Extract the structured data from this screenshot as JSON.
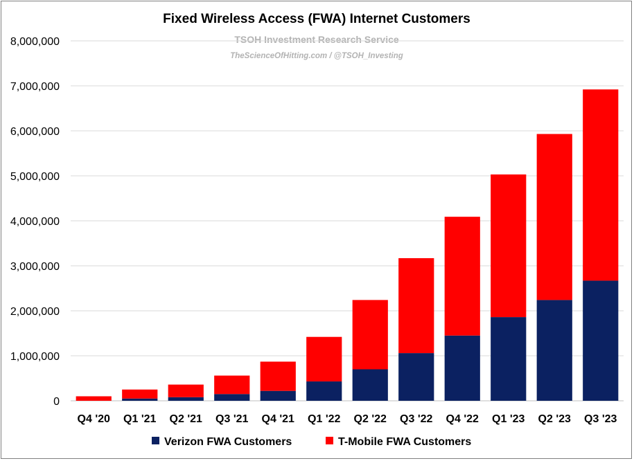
{
  "chart_data": {
    "type": "bar",
    "stacked": true,
    "title": "Fixed Wireless Access (FWA) Internet Customers",
    "watermark": {
      "line1": "TSOH Investment Research Service",
      "line2": "TheScienceOfHitting.com / @TSOH_Investing"
    },
    "categories": [
      "Q4 '20",
      "Q1 '21",
      "Q2 '21",
      "Q3 '21",
      "Q4 '21",
      "Q1 '22",
      "Q2 '22",
      "Q3 '22",
      "Q4 '22",
      "Q1 '23",
      "Q2 '23",
      "Q3 '23"
    ],
    "series": [
      {
        "name": "Verizon FWA Customers",
        "color": "#0b2161",
        "values": [
          0,
          50000,
          80000,
          150000,
          220000,
          430000,
          700000,
          1060000,
          1450000,
          1860000,
          2240000,
          2670000
        ]
      },
      {
        "name": "T-Mobile FWA Customers",
        "color": "#ff0000",
        "values": [
          100000,
          200000,
          280000,
          410000,
          650000,
          990000,
          1540000,
          2110000,
          2640000,
          3170000,
          3690000,
          4250000
        ]
      }
    ],
    "ylim": [
      0,
      8000000
    ],
    "yticks": [
      "0",
      "1,000,000",
      "2,000,000",
      "3,000,000",
      "4,000,000",
      "5,000,000",
      "6,000,000",
      "7,000,000",
      "8,000,000"
    ],
    "ytick_values": [
      0,
      1000000,
      2000000,
      3000000,
      4000000,
      5000000,
      6000000,
      7000000,
      8000000
    ],
    "grid": true,
    "legend_position": "bottom",
    "xlabel": "",
    "ylabel": ""
  },
  "colors": {
    "gridline": "#d9d9d9",
    "axis": "#bfbfbf"
  }
}
